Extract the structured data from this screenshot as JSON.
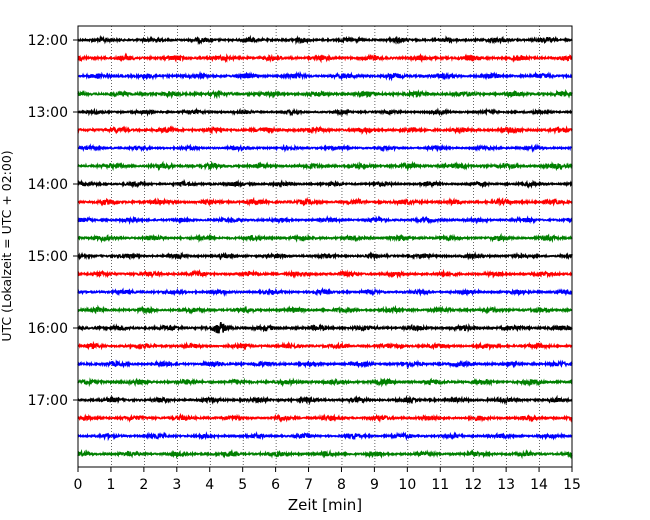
{
  "chart_data": {
    "type": "line",
    "title": "",
    "xlabel": "Zeit  [min]",
    "ylabel": "UTC (Lokalzeit = UTC + 02:00)",
    "xlim": [
      0,
      15
    ],
    "xticks": [
      0,
      1,
      2,
      3,
      4,
      5,
      6,
      7,
      8,
      9,
      10,
      11,
      12,
      13,
      14,
      15
    ],
    "x_grid": "dotted vertical lines at each minute",
    "y_tick_labels": [
      "12:00",
      "13:00",
      "14:00",
      "15:00",
      "16:00",
      "17:00"
    ],
    "trace_interval_minutes": 15,
    "color_cycle": [
      "#000000",
      "#ff0000",
      "#0000ff",
      "#008000"
    ],
    "traces": [
      {
        "start": "12:00",
        "color": "#000000",
        "amplitude": 0.55
      },
      {
        "start": "12:15",
        "color": "#ff0000",
        "amplitude": 0.6
      },
      {
        "start": "12:30",
        "color": "#0000ff",
        "amplitude": 0.6
      },
      {
        "start": "12:45",
        "color": "#008000",
        "amplitude": 0.6
      },
      {
        "start": "13:00",
        "color": "#000000",
        "amplitude": 0.45
      },
      {
        "start": "13:15",
        "color": "#ff0000",
        "amplitude": 0.6
      },
      {
        "start": "13:30",
        "color": "#0000ff",
        "amplitude": 0.45
      },
      {
        "start": "13:45",
        "color": "#008000",
        "amplitude": 0.6
      },
      {
        "start": "14:00",
        "color": "#000000",
        "amplitude": 0.5
      },
      {
        "start": "14:15",
        "color": "#ff0000",
        "amplitude": 0.6
      },
      {
        "start": "14:30",
        "color": "#0000ff",
        "amplitude": 0.5
      },
      {
        "start": "14:45",
        "color": "#008000",
        "amplitude": 0.55
      },
      {
        "start": "15:00",
        "color": "#000000",
        "amplitude": 0.5
      },
      {
        "start": "15:15",
        "color": "#ff0000",
        "amplitude": 0.55
      },
      {
        "start": "15:30",
        "color": "#0000ff",
        "amplitude": 0.5
      },
      {
        "start": "15:45",
        "color": "#008000",
        "amplitude": 0.55
      },
      {
        "start": "16:00",
        "color": "#000000",
        "amplitude": 0.6,
        "event_minute": 4.3,
        "event_amplitude": 1.6
      },
      {
        "start": "16:15",
        "color": "#ff0000",
        "amplitude": 0.55
      },
      {
        "start": "16:30",
        "color": "#0000ff",
        "amplitude": 0.55
      },
      {
        "start": "16:45",
        "color": "#008000",
        "amplitude": 0.6
      },
      {
        "start": "17:00",
        "color": "#000000",
        "amplitude": 0.55
      },
      {
        "start": "17:15",
        "color": "#ff0000",
        "amplitude": 0.55
      },
      {
        "start": "17:30",
        "color": "#0000ff",
        "amplitude": 0.5
      },
      {
        "start": "17:45",
        "color": "#008000",
        "amplitude": 0.55
      }
    ]
  }
}
